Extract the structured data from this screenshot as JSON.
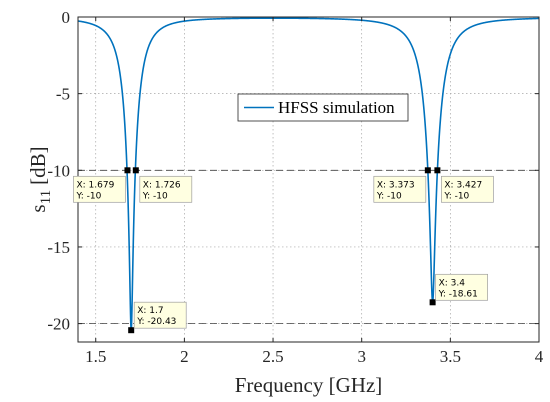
{
  "chart_data": {
    "type": "line",
    "xlabel": "Frequency [GHz]",
    "ylabel_main": "s",
    "ylabel_sub": "11",
    "ylabel_unit": "[dB]",
    "xlim": [
      1.4,
      4.0
    ],
    "ylim": [
      -21.2,
      0
    ],
    "x_ticks": [
      1.5,
      2,
      2.5,
      3,
      3.5,
      4
    ],
    "x_tick_labels": [
      "1.5",
      "2",
      "2.5",
      "3",
      "3.5",
      "4"
    ],
    "y_ticks": [
      0,
      -5,
      -10,
      -15,
      -20
    ],
    "y_tick_labels": [
      "0",
      "-5",
      "-10",
      "-15",
      "-20"
    ],
    "grid": true,
    "legend_position": "center",
    "colors": {
      "series": "#0072BD",
      "marker": "#000000",
      "tip_bg": "#FFFFE1",
      "grid": "#A6A6A6"
    },
    "series": [
      {
        "name": "HFSS simulation",
        "resonances": [
          {
            "f0": 1.7,
            "min_db": -20.43,
            "x10_low": 1.679,
            "x10_high": 1.726
          },
          {
            "f0": 3.4,
            "min_db": -18.61,
            "x10_low": 3.373,
            "x10_high": 3.427
          }
        ]
      }
    ],
    "reference_lines": [
      {
        "y": -10
      },
      {
        "y": -20
      }
    ],
    "datatips": [
      {
        "x": 1.679,
        "y": -10,
        "x_text": "X: 1.679",
        "y_text": "Y: -10",
        "side": "left"
      },
      {
        "x": 1.726,
        "y": -10,
        "x_text": "X: 1.726",
        "y_text": "Y: -10",
        "side": "right"
      },
      {
        "x": 1.7,
        "y": -20.43,
        "x_text": "X: 1.7",
        "y_text": "Y: -20.43",
        "side": "above-right"
      },
      {
        "x": 3.373,
        "y": -10,
        "x_text": "X: 3.373",
        "y_text": "Y: -10",
        "side": "left"
      },
      {
        "x": 3.427,
        "y": -10,
        "x_text": "X: 3.427",
        "y_text": "Y: -10",
        "side": "right"
      },
      {
        "x": 3.4,
        "y": -18.61,
        "x_text": "X: 3.4",
        "y_text": "Y: -18.61",
        "side": "above-right"
      }
    ]
  }
}
